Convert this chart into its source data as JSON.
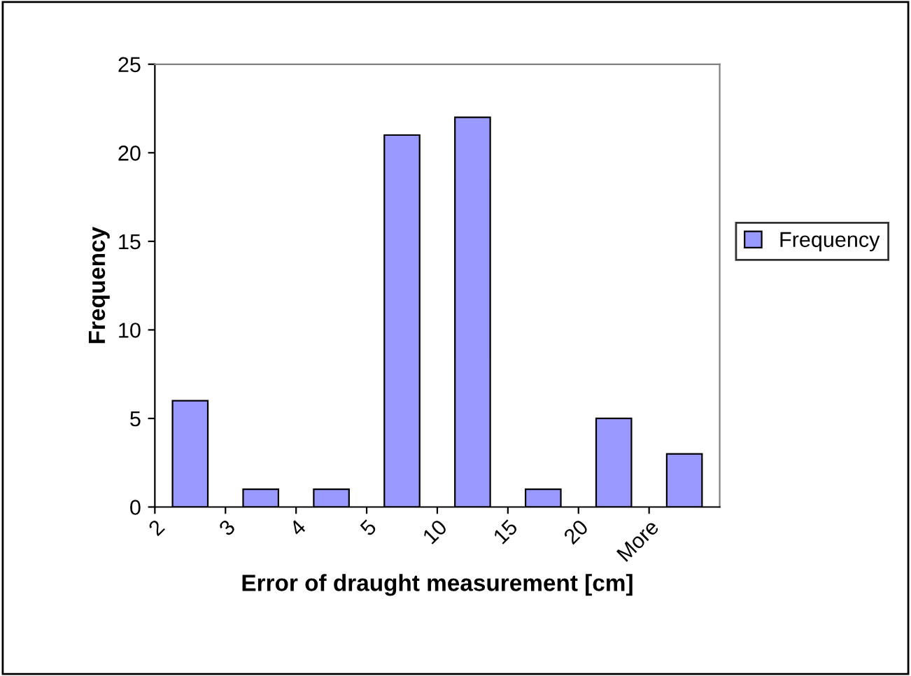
{
  "chart_data": {
    "type": "bar",
    "xlabel": "Error of draught measurement [cm]",
    "ylabel": "Frequency",
    "categories": [
      "2",
      "3",
      "4",
      "5",
      "10",
      "15",
      "20",
      "More"
    ],
    "series": [
      {
        "name": "Frequency",
        "color": "#9999ff",
        "values": [
          6,
          1,
          1,
          21,
          22,
          1,
          5,
          3
        ]
      }
    ],
    "ylim": [
      0,
      25
    ],
    "yticks": [
      0,
      5,
      10,
      15,
      20,
      25
    ],
    "grid": false,
    "legend": "right"
  }
}
